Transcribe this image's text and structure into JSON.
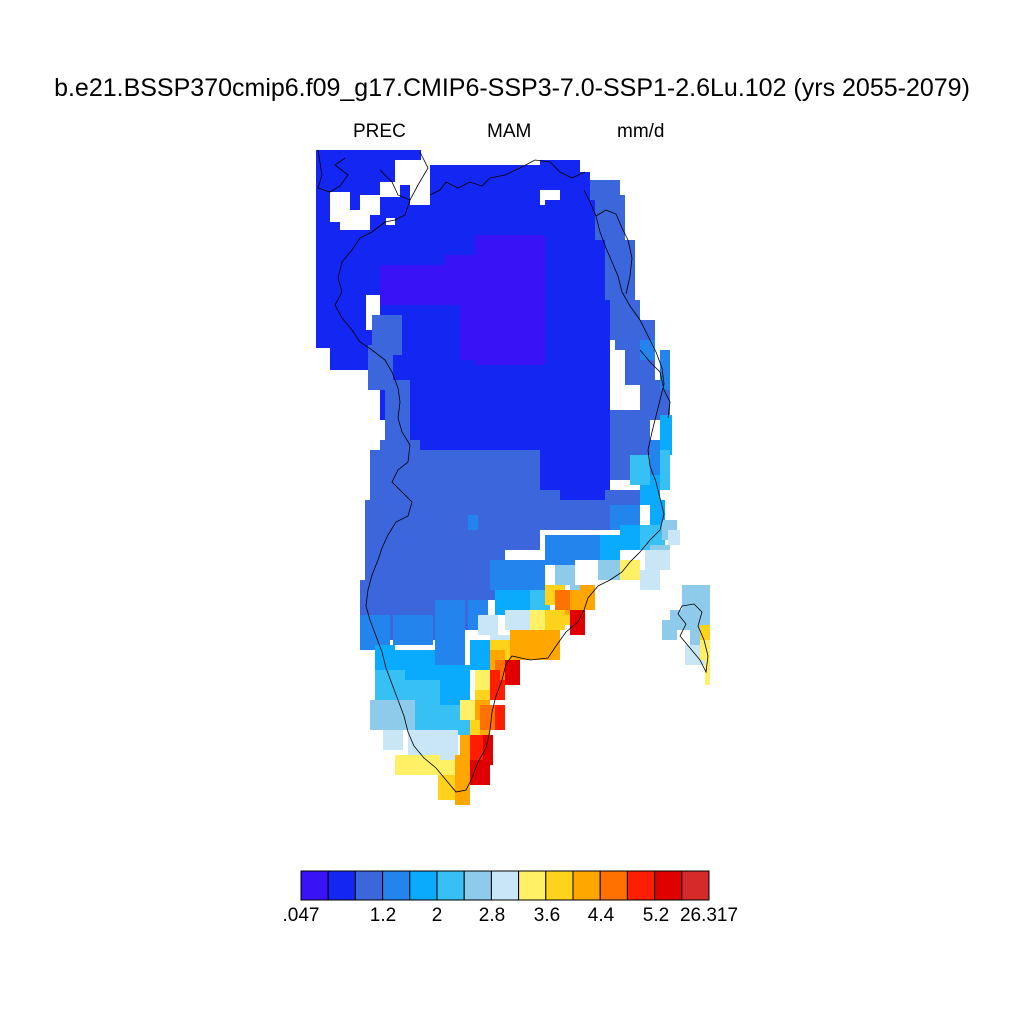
{
  "title": "b.e21.BSSP370cmip6.f09_g17.CMIP6-SSP3-7.0-SSP1-2.6Lu.102 (yrs 2055-2079)",
  "variable": "PREC",
  "season": "MAM",
  "units": "mm/d",
  "colorbar": {
    "colors": [
      "#3a12f6",
      "#1427f2",
      "#3b66dc",
      "#2284ec",
      "#0aaafc",
      "#36c0f4",
      "#8ecbea",
      "#c8e6f6",
      "#fff066",
      "#ffd21c",
      "#ffa600",
      "#ff7100",
      "#ff1e00",
      "#e00000",
      "#d42a2a"
    ],
    "labels": [
      ".047",
      "1.2",
      "2",
      "2.8",
      "3.6",
      "4.4",
      "5.2",
      "26.317"
    ]
  },
  "map_layers": {
    "ice_sheet_mask": "Greenland",
    "coastline": "on",
    "gap_regions": "white"
  }
}
